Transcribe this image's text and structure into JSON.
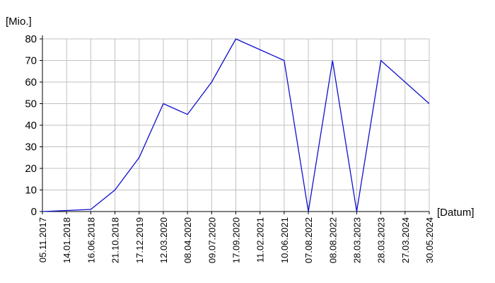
{
  "chart_data": {
    "type": "line",
    "y_axis_label": "[Mio.]",
    "x_axis_label": "[Datum]",
    "categories": [
      "05.11.2017",
      "14.01.2018",
      "16.06.2018",
      "21.10.2018",
      "17.12.2019",
      "12.03.2020",
      "08.04.2020",
      "09.07.2020",
      "17.09.2020",
      "11.02.2021",
      "10.06.2021",
      "07.08.2022",
      "08.08.2022",
      "28.03.2023",
      "28.03.2023",
      "27.03.2024",
      "30.05.2024"
    ],
    "values": [
      0,
      0.5,
      1,
      10,
      25,
      50,
      45,
      60,
      80,
      75,
      70,
      0,
      70,
      0,
      70,
      60,
      50
    ],
    "color": "#1010d0",
    "ylim": [
      0,
      80
    ],
    "yticks": [
      0,
      10,
      20,
      30,
      40,
      50,
      60,
      70,
      80
    ],
    "grid": true
  }
}
